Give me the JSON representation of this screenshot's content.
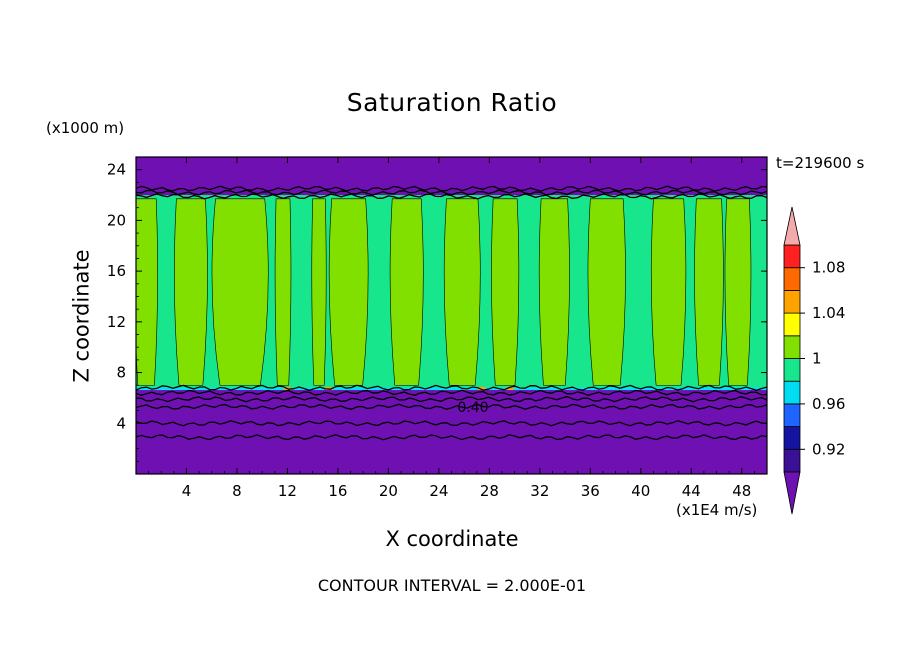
{
  "chart_data": {
    "type": "heatmap",
    "title": "Saturation Ratio",
    "xlabel": "X coordinate",
    "ylabel": "Z coordinate",
    "x_units": "(x1E4 m/s)",
    "y_units": "(x1000 m)",
    "time_label": "t=219600 s",
    "xlim": [
      0,
      50
    ],
    "ylim": [
      0,
      25
    ],
    "x_ticks": [
      4,
      8,
      12,
      16,
      20,
      24,
      28,
      32,
      36,
      40,
      44,
      48
    ],
    "y_ticks": [
      4,
      8,
      12,
      16,
      20,
      24
    ],
    "contour_interval": "2.000E-01",
    "contour_label": "0.40",
    "contour_label_pos": [
      26.7,
      5.3
    ],
    "footer": "CONTOUR INTERVAL = 2.000E-01",
    "colorbar": {
      "levels": [
        0.9,
        0.92,
        0.94,
        0.96,
        0.98,
        1.0,
        1.02,
        1.04,
        1.06,
        1.08,
        1.1
      ],
      "colors": [
        "#3a1196",
        "#1414a0",
        "#1e64ff",
        "#00dcf0",
        "#17e68c",
        "#82e000",
        "#ffff00",
        "#ffa300",
        "#ff6a00",
        "#ff2020"
      ],
      "under_color": "#6f10b3",
      "over_color": "#f2aaaa",
      "labels": [
        "1.08",
        "1.04",
        "1",
        "0.96",
        "0.92"
      ],
      "label_values": [
        1.08,
        1.04,
        1.0,
        0.96,
        0.92
      ]
    },
    "regions": {
      "background_color": "#6f10b3",
      "cloud_layer_z": [
        6.7,
        22.0
      ],
      "base_value": 0.99,
      "high_saturation_bands_x": [
        [
          0.0,
          1.6
        ],
        [
          3.2,
          5.5
        ],
        [
          6.3,
          10.2
        ],
        [
          11.1,
          12.2
        ],
        [
          14.0,
          15.0
        ],
        [
          15.5,
          18.2
        ],
        [
          20.3,
          22.6
        ],
        [
          24.6,
          27.1
        ],
        [
          28.3,
          30.2
        ],
        [
          32.1,
          34.2
        ],
        [
          36.0,
          38.6
        ],
        [
          41.0,
          43.4
        ],
        [
          44.4,
          46.4
        ],
        [
          46.8,
          48.6
        ]
      ],
      "high_saturation_value": 1.01,
      "edge_color": "#00e0ff",
      "orange_spots_x": [
        12.0,
        15.3,
        27.4,
        29.6
      ]
    },
    "contour_lines_z": [
      2.9,
      4.0,
      5.3,
      5.9,
      6.4,
      6.8,
      21.9,
      22.2,
      22.5
    ]
  }
}
